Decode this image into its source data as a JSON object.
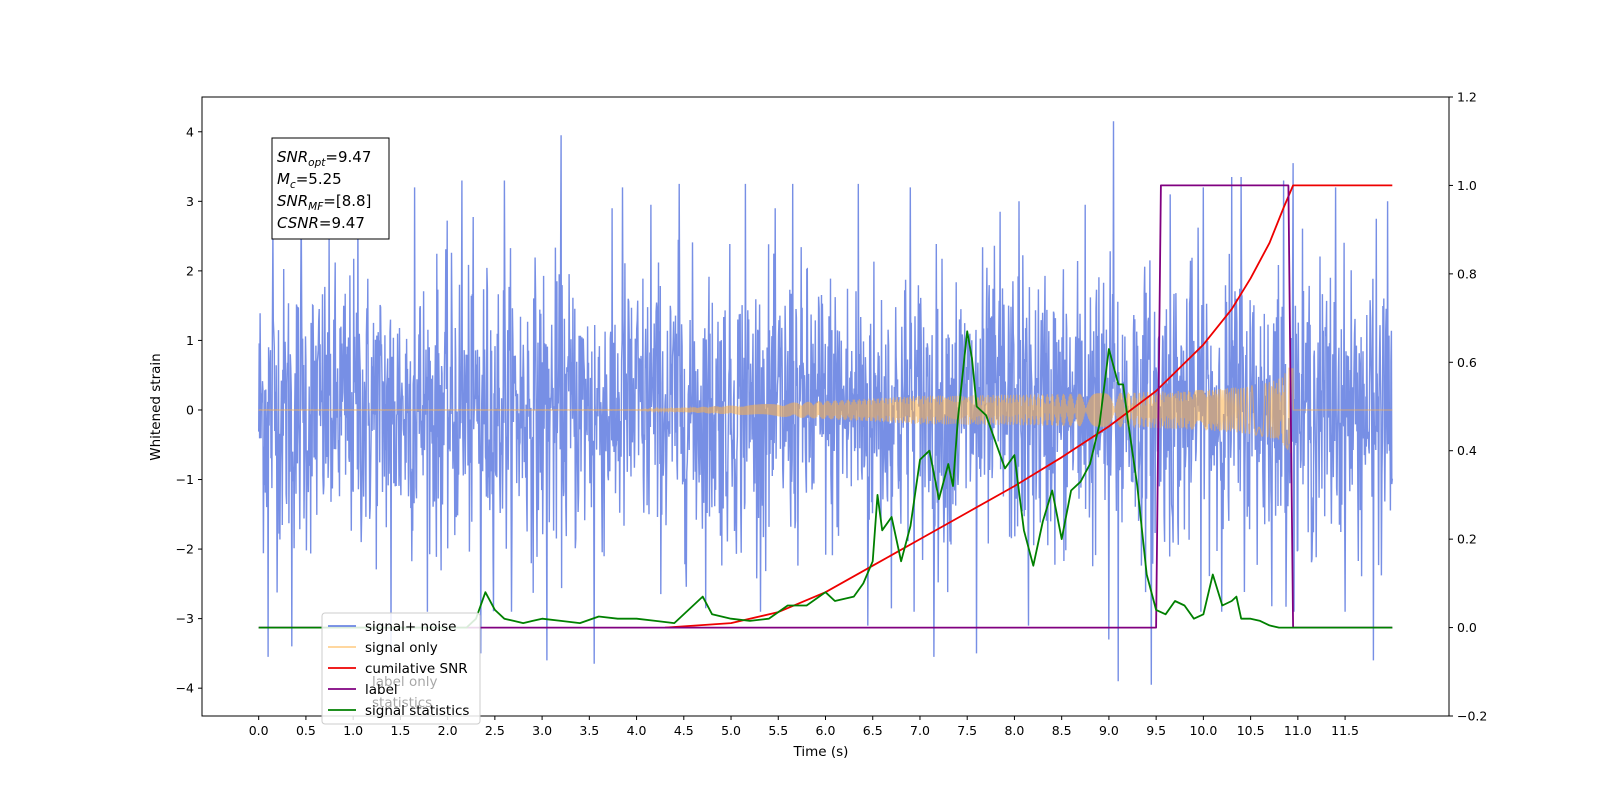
{
  "chart_data": {
    "type": "line",
    "xlabel": "Time (s)",
    "ylabel": "Whitened strain",
    "xlim": [
      -0.6,
      12.6
    ],
    "ylim": [
      -4.4,
      4.5
    ],
    "y2lim": [
      -0.2,
      1.2
    ],
    "x_ticks": [
      0.0,
      0.5,
      1.0,
      1.5,
      2.0,
      2.5,
      3.0,
      3.5,
      4.0,
      4.5,
      5.0,
      5.5,
      6.0,
      6.5,
      7.0,
      7.5,
      8.0,
      8.5,
      9.0,
      9.5,
      10.0,
      10.5,
      11.0,
      11.5
    ],
    "x_tick_labels": [
      "0.0",
      "0.5",
      "1.0",
      "1.5",
      "2.0",
      "2.5",
      "3.0",
      "3.5",
      "4.0",
      "4.5",
      "5.0",
      "5.5",
      "6.0",
      "6.5",
      "7.0",
      "7.5",
      "8.0",
      "8.5",
      "9.0",
      "9.5",
      "10.0",
      "10.5",
      "11.0",
      "11.5"
    ],
    "y_ticks": [
      -4,
      -3,
      -2,
      -1,
      0,
      1,
      2,
      3,
      4
    ],
    "y_tick_labels": [
      "−4",
      "−3",
      "−2",
      "−1",
      "0",
      "1",
      "2",
      "3",
      "4"
    ],
    "y2_ticks": [
      -0.2,
      0.0,
      0.2,
      0.4,
      0.6,
      0.8,
      1.0,
      1.2
    ],
    "y2_tick_labels": [
      "−0.2",
      "0.0",
      "0.2",
      "0.4",
      "0.6",
      "0.8",
      "1.0",
      "1.2"
    ],
    "grid": false,
    "legend_position": "lower-left",
    "annotation": {
      "lines": [
        {
          "base": "SNR",
          "sub": "opt",
          "rest": "=9.47"
        },
        {
          "base": "M",
          "sub": "c",
          "rest": "=5.25"
        },
        {
          "base": "SNR",
          "sub": "MF",
          "rest": "=[8.8]"
        },
        {
          "base": "CSNR",
          "sub": "",
          "rest": "=9.47"
        }
      ]
    },
    "series": [
      {
        "name": "signal+ noise",
        "color": "#6b86e3",
        "axis": "left",
        "style": "noise",
        "x_range": [
          0.0,
          12.0
        ],
        "mean": 0.0,
        "std": 1.0,
        "peaks": [
          [
            0.1,
            -3.55
          ],
          [
            0.15,
            2.6
          ],
          [
            0.35,
            -3.4
          ],
          [
            0.45,
            2.9
          ],
          [
            1.05,
            2.9
          ],
          [
            1.4,
            -3.4
          ],
          [
            1.65,
            3.2
          ],
          [
            2.15,
            3.3
          ],
          [
            2.35,
            -3.5
          ],
          [
            2.6,
            3.3
          ],
          [
            3.05,
            -3.6
          ],
          [
            3.2,
            3.95
          ],
          [
            3.55,
            -3.65
          ],
          [
            3.85,
            3.2
          ],
          [
            4.15,
            2.95
          ],
          [
            4.45,
            3.25
          ],
          [
            5.15,
            3.25
          ],
          [
            5.65,
            3.25
          ],
          [
            6.35,
            3.25
          ],
          [
            6.45,
            -3.1
          ],
          [
            6.9,
            3.2
          ],
          [
            7.15,
            -3.55
          ],
          [
            7.6,
            -3.5
          ],
          [
            7.85,
            2.85
          ],
          [
            8.05,
            3.0
          ],
          [
            8.15,
            -3.1
          ],
          [
            8.75,
            2.95
          ],
          [
            9.0,
            -3.3
          ],
          [
            9.05,
            4.15
          ],
          [
            9.1,
            -3.9
          ],
          [
            9.45,
            -3.95
          ],
          [
            9.65,
            3.1
          ],
          [
            10.0,
            3.2
          ],
          [
            10.3,
            3.35
          ],
          [
            10.4,
            3.35
          ],
          [
            10.85,
            3.3
          ],
          [
            10.95,
            3.55
          ],
          [
            11.4,
            3.2
          ],
          [
            11.8,
            -3.6
          ],
          [
            11.95,
            3.0
          ]
        ]
      },
      {
        "name": "signal only",
        "color": "#ffb347",
        "axis": "left",
        "style": "chirp",
        "x_range": [
          0.0,
          12.0
        ],
        "merger_time": 10.95,
        "amplitude_at_merger": 0.6,
        "amplitude_at_start": 0.02
      },
      {
        "name": "cumilative SNR",
        "color": "#ee0000",
        "axis": "right",
        "x": [
          4.3,
          5.0,
          5.5,
          6.0,
          6.5,
          7.0,
          7.5,
          8.0,
          8.5,
          9.0,
          9.5,
          10.0,
          10.3,
          10.5,
          10.7,
          10.85,
          10.95,
          11.0,
          12.0
        ],
        "y": [
          0.0,
          0.01,
          0.035,
          0.08,
          0.14,
          0.2,
          0.26,
          0.32,
          0.385,
          0.455,
          0.535,
          0.64,
          0.72,
          0.79,
          0.87,
          0.95,
          1.0,
          1.0,
          1.0
        ]
      },
      {
        "name": "label",
        "color": "#800080",
        "axis": "right",
        "x": [
          0.0,
          9.5,
          9.55,
          10.9,
          10.95,
          12.0
        ],
        "y": [
          0.0,
          0.0,
          1.0,
          1.0,
          0.0,
          0.0
        ]
      },
      {
        "name": "signal statistics",
        "color": "#008000",
        "axis": "right",
        "x": [
          0.0,
          2.2,
          2.3,
          2.4,
          2.5,
          2.6,
          2.7,
          2.8,
          2.9,
          3.0,
          3.2,
          3.4,
          3.6,
          3.8,
          4.0,
          4.2,
          4.4,
          4.6,
          4.7,
          4.8,
          5.0,
          5.2,
          5.4,
          5.6,
          5.8,
          6.0,
          6.1,
          6.3,
          6.4,
          6.5,
          6.55,
          6.6,
          6.7,
          6.8,
          6.9,
          7.0,
          7.1,
          7.2,
          7.3,
          7.35,
          7.4,
          7.5,
          7.55,
          7.6,
          7.7,
          7.8,
          7.9,
          8.0,
          8.1,
          8.2,
          8.3,
          8.4,
          8.5,
          8.6,
          8.7,
          8.8,
          8.9,
          9.0,
          9.1,
          9.15,
          9.2,
          9.3,
          9.4,
          9.5,
          9.6,
          9.7,
          9.8,
          9.9,
          10.0,
          10.1,
          10.2,
          10.3,
          10.35,
          10.4,
          10.5,
          10.6,
          10.7,
          10.8,
          10.9,
          10.95,
          11.0,
          12.0
        ],
        "y": [
          0.0,
          0.0,
          0.02,
          0.08,
          0.04,
          0.02,
          0.015,
          0.01,
          0.015,
          0.02,
          0.015,
          0.01,
          0.025,
          0.02,
          0.02,
          0.015,
          0.01,
          0.05,
          0.07,
          0.03,
          0.02,
          0.015,
          0.02,
          0.05,
          0.05,
          0.08,
          0.06,
          0.07,
          0.1,
          0.15,
          0.3,
          0.22,
          0.25,
          0.15,
          0.23,
          0.38,
          0.4,
          0.29,
          0.37,
          0.32,
          0.47,
          0.67,
          0.61,
          0.5,
          0.48,
          0.42,
          0.36,
          0.39,
          0.22,
          0.14,
          0.24,
          0.31,
          0.2,
          0.31,
          0.33,
          0.37,
          0.46,
          0.63,
          0.55,
          0.55,
          0.47,
          0.32,
          0.12,
          0.04,
          0.03,
          0.06,
          0.05,
          0.02,
          0.03,
          0.12,
          0.05,
          0.06,
          0.07,
          0.02,
          0.02,
          0.015,
          0.005,
          0.0,
          0.0,
          0.0,
          0.0,
          0.0
        ]
      }
    ],
    "legend_ghost_labels": [
      "label only",
      "statistics"
    ]
  }
}
